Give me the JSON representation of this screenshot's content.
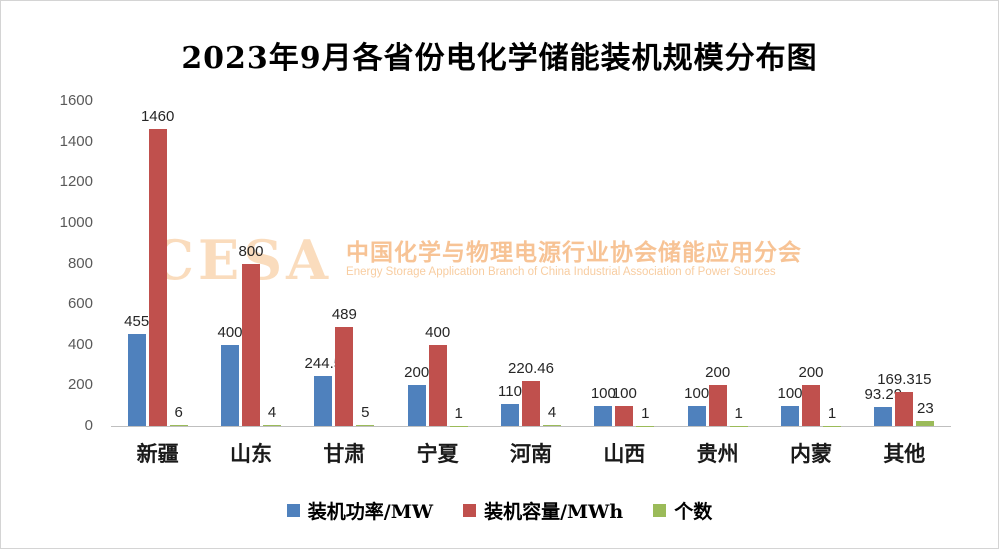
{
  "chart_data": {
    "type": "bar",
    "title": "2023年9月各省份电化学储能装机规模分布图",
    "categories": [
      "新疆",
      "山东",
      "甘肃",
      "宁夏",
      "河南",
      "山西",
      "贵州",
      "内蒙",
      "其他"
    ],
    "series": [
      {
        "name": "装机功率/MW",
        "color": "#4f81bd",
        "values": [
          455,
          400,
          244.5,
          200,
          110,
          100,
          100,
          100,
          93.29
        ]
      },
      {
        "name": "装机容量/MWh",
        "color": "#c0504d",
        "values": [
          1460,
          800,
          489,
          400,
          220.46,
          100,
          200,
          200,
          169.315
        ]
      },
      {
        "name": "个数",
        "color": "#9bbb59",
        "values": [
          6,
          4,
          5,
          1,
          4,
          1,
          1,
          1,
          23
        ]
      }
    ],
    "ylim": [
      0,
      1600
    ],
    "ytick_step": 200,
    "grid": false,
    "legend_position": "bottom",
    "data_labels": true
  },
  "watermark": {
    "logo": "CESA",
    "cn": "中国化学与物理电源行业协会储能应用分会",
    "en": "Energy Storage Application Branch of China Industrial Association of Power Sources"
  }
}
